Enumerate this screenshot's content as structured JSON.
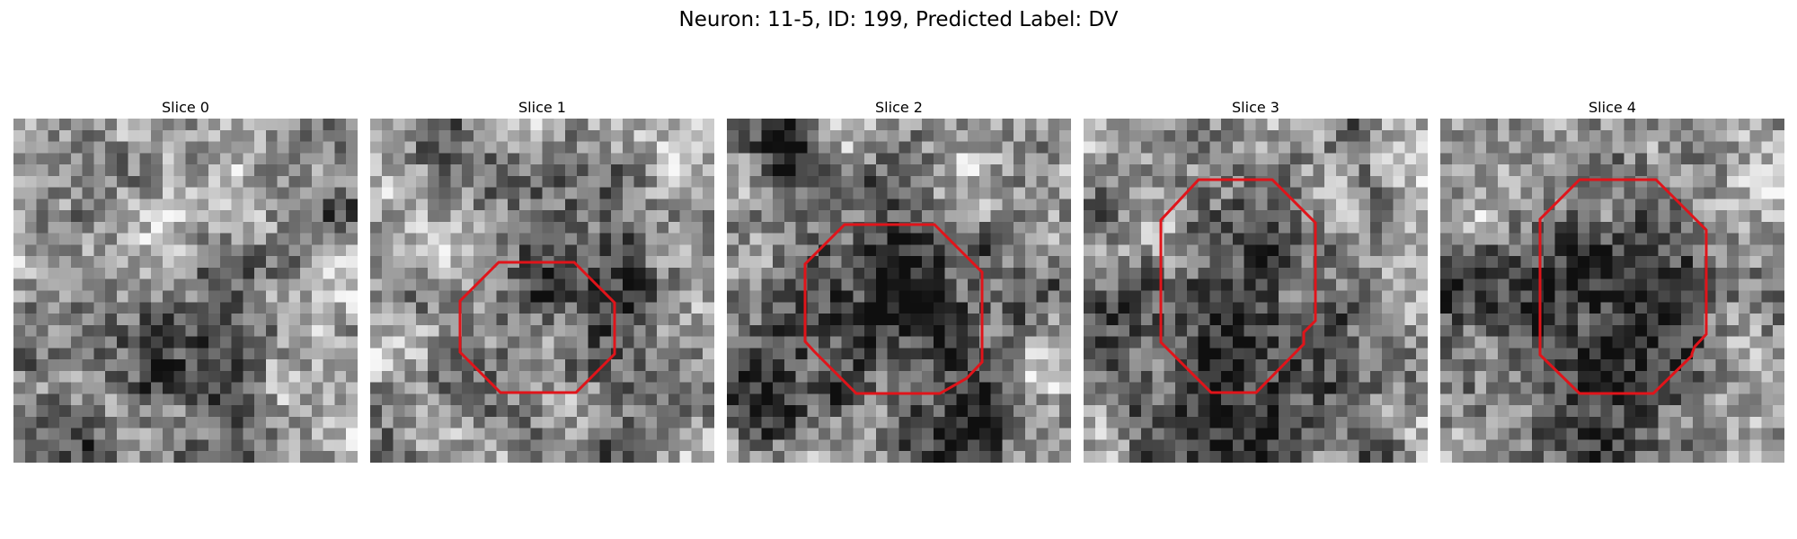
{
  "figure": {
    "title": "Neuron: 11-5, ID: 199, Predicted Label: DV"
  },
  "slices": [
    {
      "title": "Slice 0",
      "roi": false
    },
    {
      "title": "Slice 1",
      "roi": true
    },
    {
      "title": "Slice 2",
      "roi": true
    },
    {
      "title": "Slice 3",
      "roi": true
    },
    {
      "title": "Slice 4",
      "roi": true
    }
  ],
  "colors": {
    "roi_outline": "#e0141a",
    "background": "#ffffff",
    "colormap": "grayscale"
  }
}
